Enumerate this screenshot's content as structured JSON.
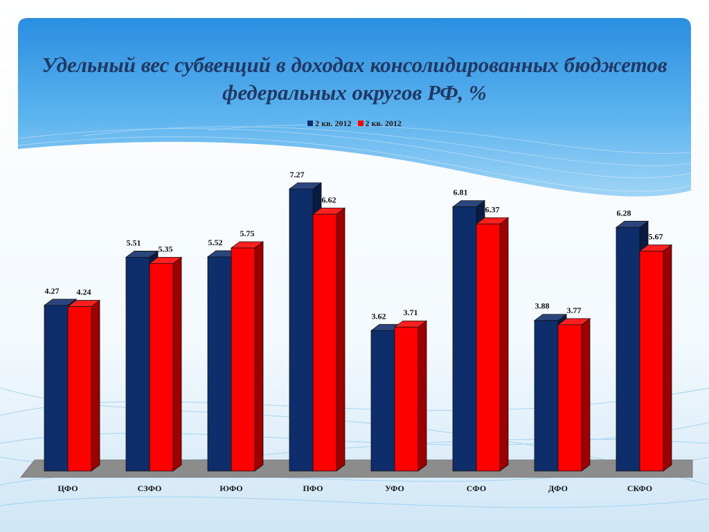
{
  "chart_data": {
    "type": "bar",
    "title": "Удельный вес субвенций в доходах консолидированных бюджетов федеральных округов РФ, %",
    "categories": [
      "ЦФО",
      "СЗФО",
      "ЮФО",
      "ПФО",
      "УФО",
      "СФО",
      "ДФО",
      "СКФО"
    ],
    "series": [
      {
        "name": "2 кв. 2012",
        "color": "#0d2d6b",
        "values": [
          4.27,
          5.51,
          5.52,
          7.27,
          3.62,
          6.81,
          3.88,
          6.28
        ],
        "labels": [
          "4.27",
          "5.51",
          "5.52",
          "7.27",
          "3.62",
          "6.81",
          "3.88",
          "6.28"
        ]
      },
      {
        "name": "2 кв. 2012",
        "color": "#ff0000",
        "values": [
          4.24,
          5.35,
          5.75,
          6.62,
          3.71,
          6.37,
          3.77,
          5.67
        ],
        "labels": [
          "4.24",
          "5.35",
          "5.75",
          "6.62",
          "3.71",
          "6.37",
          "3.77",
          "5.67"
        ]
      }
    ],
    "ylim": [
      0,
      8
    ],
    "grid": false,
    "legend_position": "top",
    "style": "3d-column"
  },
  "colors": {
    "title": "#1f3864",
    "floor": "#8c8c8c"
  }
}
